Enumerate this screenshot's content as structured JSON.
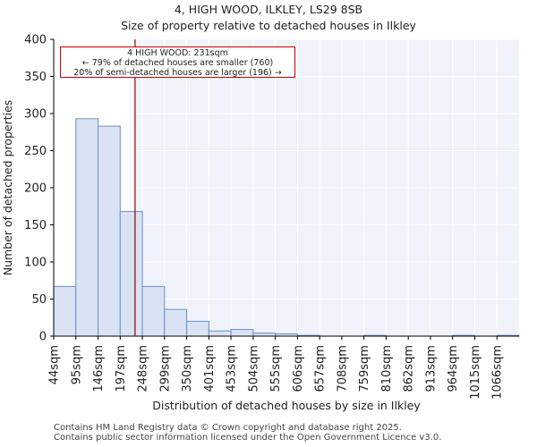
{
  "header": {
    "title_line1": "4, HIGH WOOD, ILKLEY, LS29 8SB",
    "title_line2": "Size of property relative to detached houses in Ilkley"
  },
  "annotation": {
    "line1": "4 HIGH WOOD: 231sqm",
    "line2": "← 79% of detached houses are smaller (760)",
    "line3": "20% of semi-detached houses are larger (196) →",
    "border_color": "#cc0000"
  },
  "footer": {
    "line1": "Contains HM Land Registry data © Crown copyright and database right 2025.",
    "line2": "Contains public sector information licensed under the Open Government Licence v3.0."
  },
  "colors": {
    "bar_fill": "#dae3f3",
    "bar_edge": "#6a8fc7",
    "marker": "#8b0000",
    "highlight_bg": "#f0f3fb",
    "grid": "#ffffff"
  },
  "chart_data": {
    "type": "bar",
    "title": "Size of property relative to detached houses in Ilkley",
    "xlabel": "Distribution of detached houses by size in Ilkley",
    "ylabel": "Number of detached properties",
    "categories": [
      "44sqm",
      "95sqm",
      "146sqm",
      "197sqm",
      "248sqm",
      "299sqm",
      "350sqm",
      "401sqm",
      "453sqm",
      "504sqm",
      "555sqm",
      "606sqm",
      "657sqm",
      "708sqm",
      "759sqm",
      "810sqm",
      "862sqm",
      "913sqm",
      "964sqm",
      "1015sqm",
      "1066sqm"
    ],
    "values": [
      67,
      293,
      283,
      168,
      67,
      36,
      20,
      7,
      9,
      4,
      3,
      1,
      0,
      0,
      1,
      0,
      0,
      0,
      1,
      0,
      1
    ],
    "ylim": [
      0,
      400
    ],
    "yticks": [
      0,
      50,
      100,
      150,
      200,
      250,
      300,
      350,
      400
    ],
    "marker_value_sqm": 231,
    "marker_position_bins": 3.67,
    "highlight_from_bins": 3.67,
    "grid": true
  }
}
